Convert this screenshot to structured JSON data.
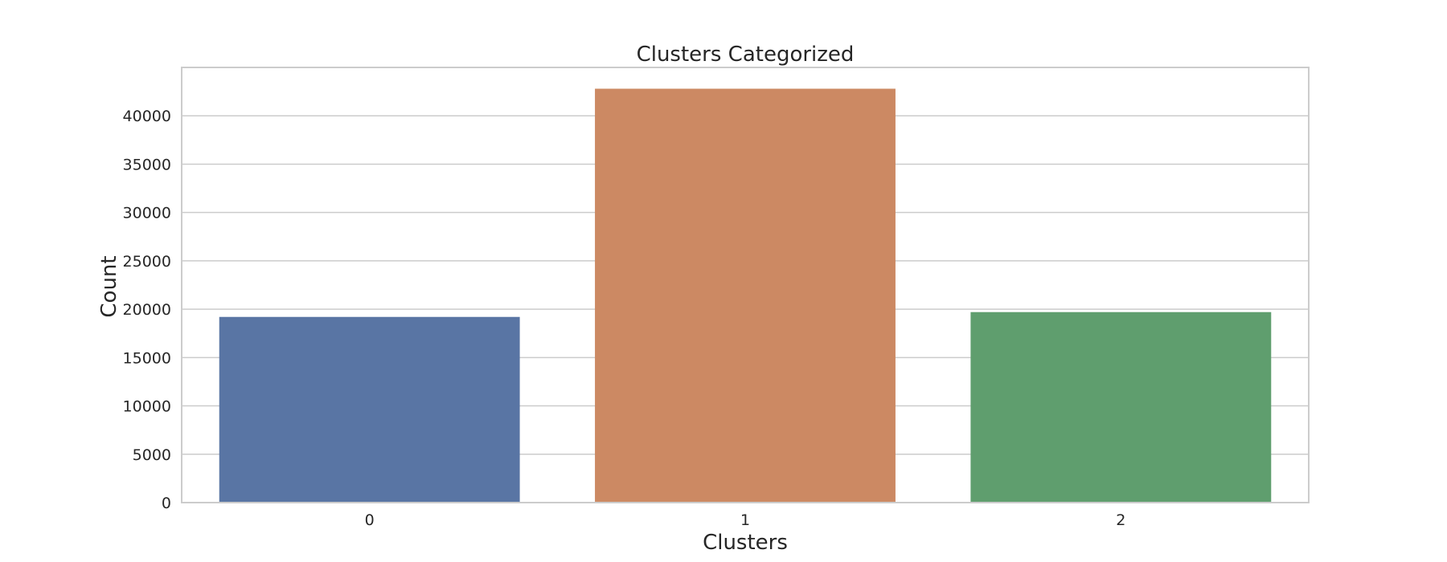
{
  "chart_data": {
    "type": "bar",
    "title": "Clusters Categorized",
    "xlabel": "Clusters",
    "ylabel": "Count",
    "categories": [
      "0",
      "1",
      "2"
    ],
    "values": [
      19200,
      42800,
      19700
    ],
    "colors": [
      "#5975a4",
      "#cc8963",
      "#5f9e6e"
    ],
    "ylim": [
      0,
      45000
    ],
    "yticks": [
      0,
      5000,
      10000,
      15000,
      20000,
      25000,
      30000,
      35000,
      40000
    ],
    "ytick_labels": [
      "0",
      "5000",
      "10000",
      "15000",
      "20000",
      "25000",
      "30000",
      "35000",
      "40000"
    ],
    "grid": "horizontal",
    "grid_color": "#cccccc",
    "frame_color": "#cccccc",
    "text_color": "#262626"
  }
}
